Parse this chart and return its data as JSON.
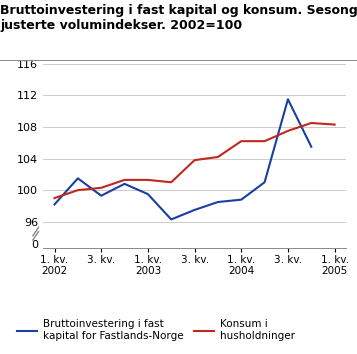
{
  "title": "Bruttoinvestering i fast kapital og konsum. Sesong-\njusterte volumindekser. 2002=100",
  "x_tick_labels": [
    "1. kv.\n2002",
    "3. kv.",
    "1. kv.\n2003",
    "3. kv.",
    "1. kv.\n2004",
    "3. kv.",
    "1. kv.\n2005"
  ],
  "x_tick_positions": [
    0,
    2,
    4,
    6,
    8,
    10,
    12
  ],
  "blue_values": [
    98.2,
    101.5,
    99.3,
    100.8,
    99.5,
    96.3,
    97.5,
    98.5,
    98.8,
    101.0,
    111.5,
    105.5
  ],
  "red_values": [
    99.0,
    100.0,
    100.3,
    101.3,
    101.3,
    101.0,
    103.8,
    104.2,
    106.2,
    106.2,
    107.5,
    108.5,
    108.3
  ],
  "blue_label": "Bruttoinvestering i fast\nkapital for Fastlands-Norge",
  "red_label": "Konsum i\nhusholdninger",
  "blue_color": "#1a3fa0",
  "red_color": "#c0281e",
  "ylim_main_bottom": 94.5,
  "ylim_main_top": 116,
  "ylim_zero_bottom": -0.5,
  "ylim_zero_top": 1.5,
  "yticks_main": [
    96,
    100,
    104,
    108,
    112,
    116
  ],
  "yticks_zero": [
    0
  ],
  "background_color": "#ffffff",
  "grid_color": "#cccccc",
  "xlim": [
    -0.5,
    12.5
  ]
}
